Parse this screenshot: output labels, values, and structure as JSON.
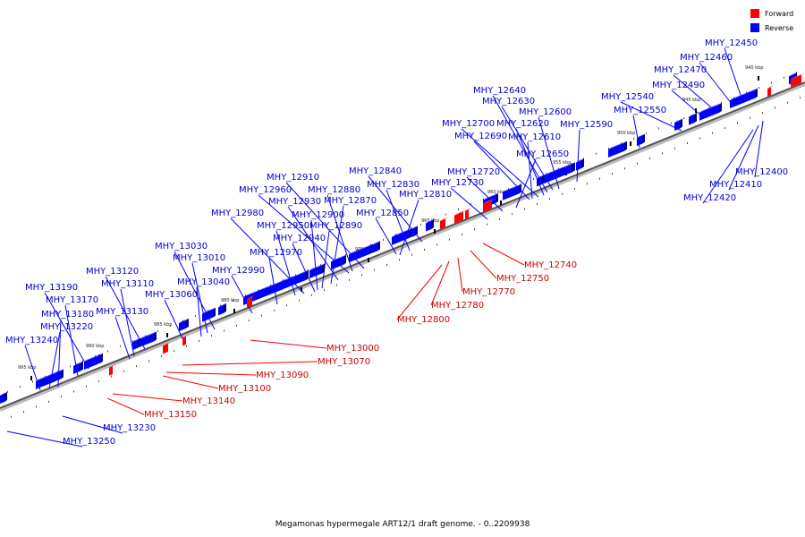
{
  "legend": {
    "forward_label": "Forward",
    "reverse_label": "Reverse",
    "forward_color": "#ff0000",
    "reverse_color": "#0000ff"
  },
  "caption": "Megamonas hypermegale ART12/1 draft genome. - 0..2209938",
  "ruler": [
    "940 kbp",
    "945 kbp",
    "950 kbp",
    "955 kbp",
    "960 kbp",
    "965 kbp",
    "970 kbp",
    "975 kbp",
    "980 kbp",
    "985 kbp",
    "990 kbp",
    "995 kbp"
  ],
  "reverse_genes": [
    "MHY_12450",
    "MHY_12460",
    "MHY_12470",
    "MHY_12490",
    "MHY_12540",
    "MHY_12550",
    "MHY_12590",
    "MHY_12640",
    "MHY_12630",
    "MHY_12600",
    "MHY_12700",
    "MHY_12620",
    "MHY_12690",
    "MHY_12610",
    "MHY_12650",
    "MHY_12720",
    "MHY_12730",
    "MHY_12840",
    "MHY_12830",
    "MHY_12810",
    "MHY_12910",
    "MHY_12960",
    "MHY_12880",
    "MHY_12930",
    "MHY_12870",
    "MHY_12980",
    "MHY_12900",
    "MHY_12850",
    "MHY_12950",
    "MHY_12890",
    "MHY_12940",
    "MHY_12970",
    "MHY_13030",
    "MHY_13010",
    "MHY_12990",
    "MHY_13120",
    "MHY_13110",
    "MHY_13040",
    "MHY_13060",
    "MHY_13190",
    "MHY_13170",
    "MHY_13130",
    "MHY_13180",
    "MHY_13220",
    "MHY_13240",
    "MHY_12400",
    "MHY_12410",
    "MHY_12420",
    "MHY_13230",
    "MHY_13250"
  ],
  "forward_genes": [
    "MHY_12740",
    "MHY_12750",
    "MHY_12770",
    "MHY_12780",
    "MHY_12800",
    "MHY_13000",
    "MHY_13070",
    "MHY_13090",
    "MHY_13100",
    "MHY_13140",
    "MHY_13150"
  ]
}
